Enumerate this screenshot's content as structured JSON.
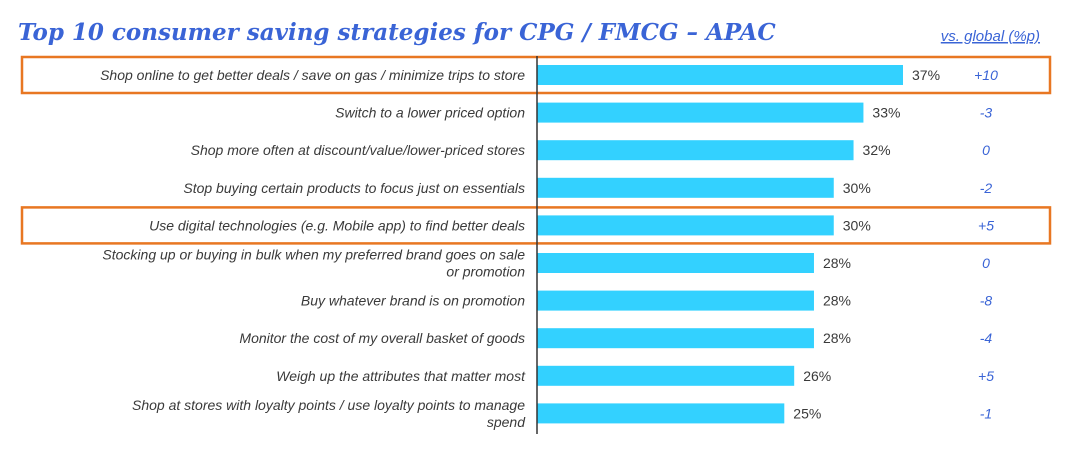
{
  "chart_data": {
    "type": "bar",
    "orientation": "horizontal",
    "title": "Top 10 consumer saving strategies for CPG / FMCG – APAC",
    "comparison_header": "vs. global (%p)",
    "categories": [
      [
        "Shop online to get better deals / save on gas / minimize trips to store"
      ],
      [
        "Switch to a lower priced option"
      ],
      [
        "Shop more often at discount/value/lower-priced stores"
      ],
      [
        "Stop buying certain products to focus just on essentials"
      ],
      [
        "Use digital technologies (e.g. Mobile app) to find better deals"
      ],
      [
        "Stocking up or buying in bulk when my preferred brand goes on sale",
        "or promotion"
      ],
      [
        "Buy whatever brand is on promotion"
      ],
      [
        "Monitor the cost of my overall basket of goods"
      ],
      [
        "Weigh up the attributes that matter most"
      ],
      [
        "Shop at stores with loyalty points / use loyalty points to manage",
        "spend"
      ]
    ],
    "values": [
      37,
      33,
      32,
      30,
      30,
      28,
      28,
      28,
      26,
      25
    ],
    "value_labels": [
      "37%",
      "33%",
      "32%",
      "30%",
      "30%",
      "28%",
      "28%",
      "28%",
      "26%",
      "25%"
    ],
    "vs_global": [
      "+10",
      "-3",
      "0",
      "-2",
      "+5",
      "0",
      "-8",
      "-4",
      "+5",
      "-1"
    ],
    "highlighted": [
      0,
      4
    ],
    "xlim": [
      0,
      37
    ],
    "grid": false,
    "colors": {
      "bar": "#33d1ff",
      "title": "#3a64d6",
      "vs_global": "#3a64d6",
      "highlight_box": "#e87722",
      "text": "#3a3a3a",
      "axis": "#333333"
    }
  }
}
